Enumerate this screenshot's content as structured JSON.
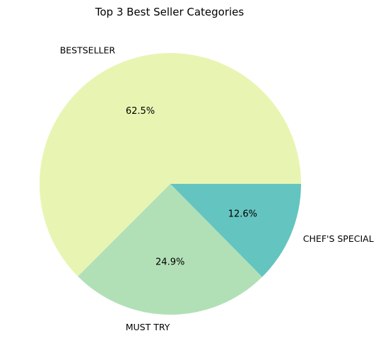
{
  "chart_data": {
    "type": "pie",
    "title": "Top 3 Best Seller Categories",
    "start_angle_deg": 0,
    "direction": "counterclockwise",
    "slices": [
      {
        "label": "BESTSELLER",
        "value": 62.5,
        "pct_label": "62.5%",
        "color": "#e8f5b2"
      },
      {
        "label": "MUST TRY",
        "value": 24.9,
        "pct_label": "24.9%",
        "color": "#b2e0b6"
      },
      {
        "label": "CHEF'S SPECIAL",
        "value": 12.6,
        "pct_label": "12.6%",
        "color": "#64c4c0"
      }
    ]
  }
}
